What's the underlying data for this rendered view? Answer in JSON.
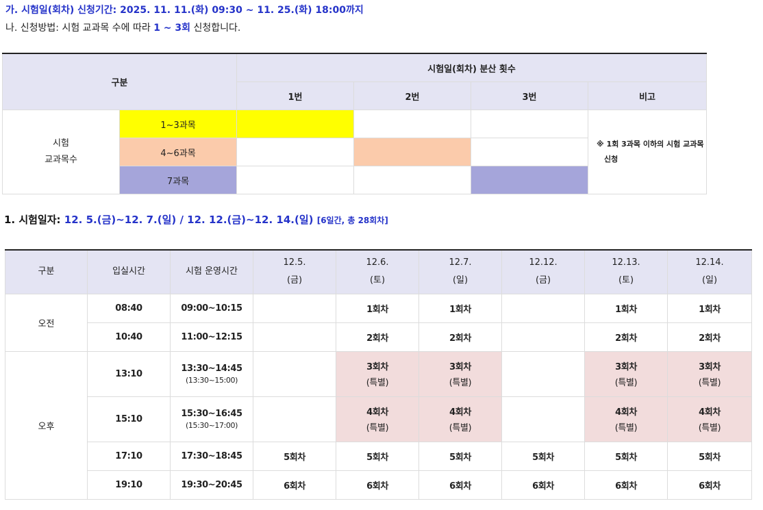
{
  "header": {
    "apply_period": "가. 시험일(회차) 신청기간: 2025. 11. 11.(화) 09:30 ~ 11. 25.(화) 18:00까지",
    "method_prefix": "나. 신청방법: 시험 교과목 수에 따라 ",
    "method_highlight": "1 ~ 3회",
    "method_suffix": " 신청합니다."
  },
  "table1": {
    "col_group": "구분",
    "col_distribution": "시험일(회차) 분산 횟수",
    "col_1": "1번",
    "col_2": "2번",
    "col_3": "3번",
    "col_note": "비고",
    "row_label_line1": "시험",
    "row_label_line2": "교과목수",
    "rows": [
      "1~3과목",
      "4~6과목",
      "7과목"
    ],
    "note_line1": "※ 1회 3과목 이하의 시험 교과목",
    "note_line2": "신청",
    "colors": {
      "yellow": "#ffff00",
      "peach": "#fbcbab",
      "lavender": "#a5a5da"
    }
  },
  "section": {
    "label": "1. 시험일자: ",
    "dates": "12. 5.(금)~12. 7.(일) / 12. 12.(금)~12. 14.(일) ",
    "summary": "[6일간, 총 28회차]"
  },
  "table2": {
    "headers": {
      "group": "구분",
      "entry": "입실시간",
      "operation": "시험 운영시간",
      "days": [
        {
          "date": "12.5.",
          "weekday": "(금)"
        },
        {
          "date": "12.6.",
          "weekday": "(토)"
        },
        {
          "date": "12.7.",
          "weekday": "(일)"
        },
        {
          "date": "12.12.",
          "weekday": "(금)"
        },
        {
          "date": "12.13.",
          "weekday": "(토)"
        },
        {
          "date": "12.14.",
          "weekday": "(일)"
        }
      ]
    },
    "am_label": "오전",
    "pm_label": "오후",
    "special": "(특별)",
    "rows": [
      {
        "entry": "08:40",
        "time": "09:00~10:15",
        "cells": [
          "",
          "1회차",
          "1회차",
          "",
          "1회차",
          "1회차"
        ]
      },
      {
        "entry": "10:40",
        "time": "11:00~12:15",
        "cells": [
          "",
          "2회차",
          "2회차",
          "",
          "2회차",
          "2회차"
        ]
      },
      {
        "entry": "13:10",
        "time": "13:30~14:45",
        "time_sub": "(13:30~15:00)",
        "cells": [
          "",
          "3회차",
          "3회차",
          "",
          "3회차",
          "3회차"
        ]
      },
      {
        "entry": "15:10",
        "time": "15:30~16:45",
        "time_sub": "(15:30~17:00)",
        "cells": [
          "",
          "4회차",
          "4회차",
          "",
          "4회차",
          "4회차"
        ]
      },
      {
        "entry": "17:10",
        "time": "17:30~18:45",
        "cells": [
          "5회차",
          "5회차",
          "5회차",
          "5회차",
          "5회차",
          "5회차"
        ]
      },
      {
        "entry": "19:10",
        "time": "19:30~20:45",
        "cells": [
          "6회차",
          "6회차",
          "6회차",
          "6회차",
          "6회차",
          "6회차"
        ]
      }
    ],
    "colors": {
      "header_bg": "#e4e4f3",
      "special_bg": "#f2dcdc"
    }
  }
}
